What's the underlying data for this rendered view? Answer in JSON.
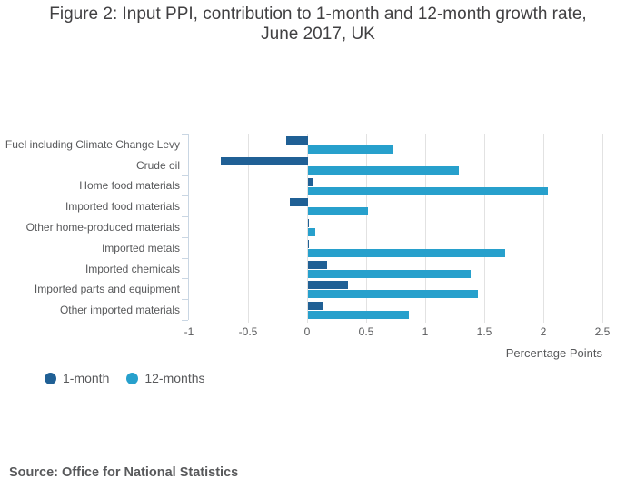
{
  "title": {
    "line1": "Figure 2: Input PPI, contribution to 1-month and 12-month growth rate,",
    "line2": "June 2017, UK"
  },
  "chart_data": {
    "type": "bar",
    "orientation": "horizontal",
    "categories": [
      "Fuel including Climate Change Levy",
      "Crude oil",
      "Home food materials",
      "Imported food materials",
      "Other home-produced materials",
      "Imported metals",
      "Imported chemicals",
      "Imported parts and equipment",
      "Other imported materials"
    ],
    "series": [
      {
        "name": "1-month",
        "color": "#206095",
        "values": [
          -0.18,
          -0.73,
          0.04,
          -0.15,
          0.01,
          0.01,
          0.16,
          0.34,
          0.12
        ]
      },
      {
        "name": "12-months",
        "color": "#27A0CC",
        "values": [
          0.72,
          1.28,
          2.03,
          0.51,
          0.06,
          1.67,
          1.38,
          1.44,
          0.85
        ]
      }
    ],
    "xlabel": "Percentage Points",
    "xlim": [
      -1,
      2.5
    ],
    "xticks": [
      -1,
      -0.5,
      0,
      0.5,
      1,
      1.5,
      2,
      2.5
    ],
    "xtick_labels": [
      "-1",
      "-0.5",
      "0",
      "0.5",
      "1",
      "1.5",
      "2",
      "2.5"
    ],
    "grid": true,
    "legend_position": "bottom-left"
  },
  "legend": {
    "items": [
      {
        "label": "1-month",
        "color": "#206095"
      },
      {
        "label": "12-months",
        "color": "#27A0CC"
      }
    ]
  },
  "source": {
    "text": "Source: Office for National Statistics"
  }
}
